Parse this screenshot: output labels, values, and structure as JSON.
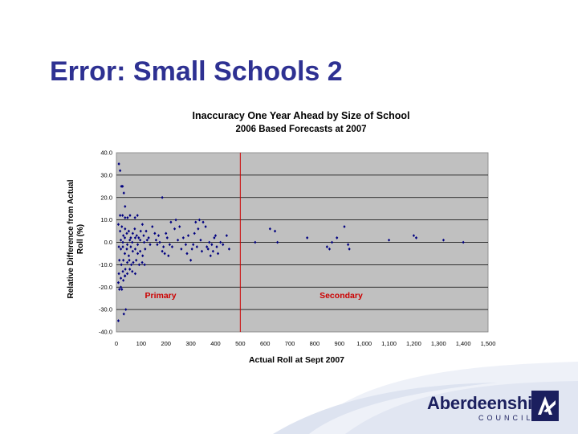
{
  "slide": {
    "title": "Error: Small Schools 2"
  },
  "footer": {
    "logo_name": "Aberdeenshire",
    "logo_sub": "COUNCIL",
    "logo_icon": "aberdeenshire-council-mark",
    "colors": {
      "swoosh": "#e4e8f3",
      "navy": "#1b1f5e"
    }
  },
  "chart_data": {
    "type": "scatter",
    "title": "Inaccuracy One Year Ahead by Size of School",
    "subtitle": "2006 Based Forecasts at 2007",
    "xlabel": "Actual Roll at Sept 2007",
    "ylabel": "Relative Difference from Actual Roll (%)",
    "xlim": [
      0,
      1500
    ],
    "ylim": [
      -40,
      40
    ],
    "x_ticks": [
      0,
      100,
      200,
      300,
      400,
      500,
      600,
      700,
      800,
      900,
      1000,
      1100,
      1200,
      1300,
      1400,
      1500
    ],
    "x_tick_labels": [
      "0",
      "100",
      "200",
      "300",
      "400",
      "500",
      "600",
      "700",
      "800",
      "900",
      "1,000",
      "1,100",
      "1,200",
      "1,300",
      "1,400",
      "1,500"
    ],
    "y_ticks": [
      -40,
      -30,
      -20,
      -10,
      0,
      10,
      20,
      30,
      40
    ],
    "y_tick_labels": [
      "-40.0",
      "-30.0",
      "-20.0",
      "-10.0",
      "0.0",
      "10.0",
      "20.0",
      "30.0",
      "40.0"
    ],
    "grid": "horizontal",
    "divider_x": 500,
    "annotations": [
      {
        "text": "Primary",
        "x": 115,
        "y": -25
      },
      {
        "text": "Secondary",
        "x": 820,
        "y": -25
      }
    ],
    "colors": {
      "plot_bg": "#c0c0c0",
      "point": "#000080",
      "divider": "#cc0000",
      "annotation": "#cc0000"
    },
    "points": [
      [
        10,
        35
      ],
      [
        15,
        32
      ],
      [
        20,
        25
      ],
      [
        25,
        25
      ],
      [
        30,
        22
      ],
      [
        35,
        16
      ],
      [
        15,
        12
      ],
      [
        25,
        12
      ],
      [
        35,
        11
      ],
      [
        45,
        11
      ],
      [
        55,
        12
      ],
      [
        75,
        11
      ],
      [
        85,
        12
      ],
      [
        105,
        8
      ],
      [
        185,
        20
      ],
      [
        8,
        8
      ],
      [
        15,
        5
      ],
      [
        22,
        7
      ],
      [
        28,
        3
      ],
      [
        35,
        6
      ],
      [
        42,
        4
      ],
      [
        50,
        5
      ],
      [
        58,
        2
      ],
      [
        66,
        4
      ],
      [
        74,
        6
      ],
      [
        82,
        3
      ],
      [
        90,
        2
      ],
      [
        98,
        5
      ],
      [
        110,
        3
      ],
      [
        120,
        5
      ],
      [
        130,
        2
      ],
      [
        18,
        1
      ],
      [
        26,
        0
      ],
      [
        34,
        2
      ],
      [
        44,
        -1
      ],
      [
        54,
        1
      ],
      [
        64,
        0
      ],
      [
        76,
        2
      ],
      [
        86,
        -1
      ],
      [
        96,
        1
      ],
      [
        112,
        0
      ],
      [
        124,
        1
      ],
      [
        136,
        -1
      ],
      [
        10,
        -2
      ],
      [
        18,
        -3
      ],
      [
        26,
        -2
      ],
      [
        34,
        -5
      ],
      [
        42,
        -3
      ],
      [
        50,
        -6
      ],
      [
        58,
        -2
      ],
      [
        66,
        -4
      ],
      [
        76,
        -3
      ],
      [
        86,
        -5
      ],
      [
        96,
        -4
      ],
      [
        106,
        -6
      ],
      [
        116,
        -3
      ],
      [
        12,
        -8
      ],
      [
        20,
        -10
      ],
      [
        28,
        -8
      ],
      [
        36,
        -12
      ],
      [
        44,
        -9
      ],
      [
        52,
        -8
      ],
      [
        60,
        -10
      ],
      [
        68,
        -9
      ],
      [
        80,
        -8
      ],
      [
        92,
        -10
      ],
      [
        104,
        -9
      ],
      [
        114,
        -10
      ],
      [
        10,
        -14
      ],
      [
        18,
        -16
      ],
      [
        26,
        -13
      ],
      [
        34,
        -15
      ],
      [
        44,
        -14
      ],
      [
        54,
        -12
      ],
      [
        64,
        -13
      ],
      [
        76,
        -14
      ],
      [
        8,
        -18
      ],
      [
        18,
        -20
      ],
      [
        28,
        -17
      ],
      [
        35,
        -15
      ],
      [
        12,
        -21
      ],
      [
        22,
        -21
      ],
      [
        30,
        -32
      ],
      [
        38,
        -30
      ],
      [
        8,
        -35
      ],
      [
        145,
        7
      ],
      [
        155,
        4
      ],
      [
        160,
        1
      ],
      [
        165,
        -1
      ],
      [
        170,
        3
      ],
      [
        175,
        0
      ],
      [
        185,
        -4
      ],
      [
        190,
        -2
      ],
      [
        195,
        -5
      ],
      [
        200,
        4
      ],
      [
        205,
        2
      ],
      [
        210,
        -6
      ],
      [
        215,
        -1
      ],
      [
        220,
        9
      ],
      [
        225,
        -2
      ],
      [
        235,
        6
      ],
      [
        240,
        10
      ],
      [
        248,
        1
      ],
      [
        255,
        7
      ],
      [
        262,
        -3
      ],
      [
        270,
        2
      ],
      [
        280,
        -1
      ],
      [
        285,
        -5
      ],
      [
        290,
        3
      ],
      [
        300,
        -8
      ],
      [
        305,
        -3
      ],
      [
        310,
        -1
      ],
      [
        315,
        4
      ],
      [
        320,
        9
      ],
      [
        325,
        -2
      ],
      [
        330,
        6
      ],
      [
        335,
        10
      ],
      [
        340,
        1
      ],
      [
        345,
        -4
      ],
      [
        350,
        9
      ],
      [
        360,
        7
      ],
      [
        365,
        -2
      ],
      [
        370,
        -3
      ],
      [
        375,
        0
      ],
      [
        380,
        -6
      ],
      [
        385,
        -1
      ],
      [
        390,
        -4
      ],
      [
        395,
        2
      ],
      [
        400,
        3
      ],
      [
        405,
        -2
      ],
      [
        410,
        -5
      ],
      [
        420,
        0
      ],
      [
        430,
        -1
      ],
      [
        445,
        3
      ],
      [
        455,
        -3
      ],
      [
        560,
        0
      ],
      [
        620,
        6
      ],
      [
        640,
        5
      ],
      [
        650,
        0
      ],
      [
        770,
        2
      ],
      [
        850,
        -2
      ],
      [
        860,
        -3
      ],
      [
        870,
        0
      ],
      [
        890,
        2
      ],
      [
        920,
        7
      ],
      [
        935,
        -1
      ],
      [
        940,
        -3
      ],
      [
        1100,
        1
      ],
      [
        1200,
        3
      ],
      [
        1210,
        2
      ],
      [
        1320,
        1
      ],
      [
        1400,
        0
      ]
    ]
  }
}
